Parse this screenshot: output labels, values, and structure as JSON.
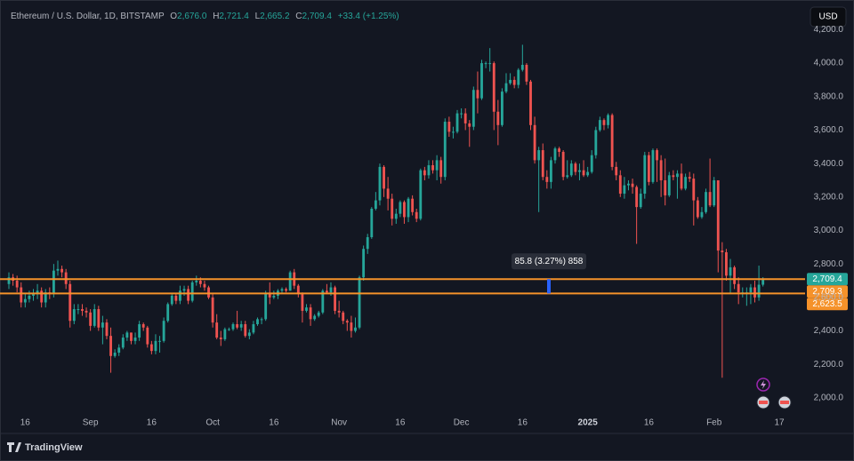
{
  "chart_data": {
    "type": "candlestick",
    "header": {
      "symbol": "Ethereum / U.S. Dollar, 1D, BITSTAMP",
      "o_key": "O",
      "o": "2,676.0",
      "h_key": "H",
      "h": "2,721.4",
      "l_key": "L",
      "l": "2,665.2",
      "c_key": "C",
      "c": "2,709.4",
      "change": "+33.4 (+1.25%)"
    },
    "currency": "USD",
    "brand": "TradingView",
    "up_color": "#26a69a",
    "down_color": "#ef5350",
    "grid": false,
    "ylim": [
      1925,
      4335
    ],
    "yticks": [
      {
        "value": 2000,
        "label": "2,000.0"
      },
      {
        "value": 2200,
        "label": "2,200.0"
      },
      {
        "value": 2400,
        "label": "2,400.0"
      },
      {
        "value": 2600,
        "label": "2,600.0"
      },
      {
        "value": 2800,
        "label": "2,800.0"
      },
      {
        "value": 3000,
        "label": "3,000.0"
      },
      {
        "value": 3200,
        "label": "3,200.0"
      },
      {
        "value": 3400,
        "label": "3,400.0"
      },
      {
        "value": 3600,
        "label": "3,600.0"
      },
      {
        "value": 3800,
        "label": "3,800.0"
      },
      {
        "value": 4000,
        "label": "4,000.0"
      },
      {
        "value": 4200,
        "label": "4,200.0"
      }
    ],
    "categories": [
      null,
      null,
      null,
      null,
      "16",
      null,
      null,
      null,
      null,
      null,
      null,
      null,
      null,
      null,
      null,
      null,
      null,
      null,
      null,
      null,
      "Sep",
      null,
      null,
      null,
      null,
      null,
      null,
      null,
      null,
      null,
      null,
      null,
      null,
      null,
      null,
      "16",
      null,
      null,
      null,
      null,
      null,
      null,
      null,
      null,
      null,
      null,
      null,
      null,
      null,
      null,
      "Oct",
      null,
      null,
      null,
      null,
      null,
      null,
      null,
      null,
      null,
      null,
      null,
      null,
      null,
      null,
      "16",
      null,
      null,
      null,
      null,
      null,
      null,
      null,
      null,
      null,
      null,
      null,
      null,
      null,
      null,
      null,
      "Nov",
      null,
      null,
      null,
      null,
      null,
      null,
      null,
      null,
      null,
      null,
      null,
      null,
      null,
      null,
      "16",
      null,
      null,
      null,
      null,
      null,
      null,
      null,
      null,
      null,
      null,
      null,
      null,
      null,
      null,
      "Dec",
      null,
      null,
      null,
      null,
      null,
      null,
      null,
      null,
      null,
      null,
      null,
      null,
      null,
      null,
      "16",
      null,
      null,
      null,
      null,
      null,
      null,
      null,
      null,
      null,
      null,
      null,
      null,
      null,
      null,
      null,
      "2025",
      null,
      null,
      null,
      null,
      null,
      null,
      null,
      null,
      null,
      null,
      null,
      null,
      null,
      null,
      "16",
      null,
      null,
      null,
      null,
      null,
      null,
      null,
      null,
      null,
      null,
      null,
      null,
      null,
      null,
      null,
      "Feb",
      null,
      null,
      null,
      null,
      null,
      null,
      null,
      null,
      null,
      null,
      null,
      null,
      null,
      null,
      null,
      "17"
    ],
    "open": [
      2680,
      2720,
      2700,
      2660,
      2570,
      2590,
      2610,
      2620,
      2640,
      2570,
      2630,
      2620,
      2760,
      2770,
      2750,
      2680,
      2460,
      2530,
      2530,
      2520,
      2510,
      2430,
      2530,
      2420,
      2450,
      2370,
      2250,
      2270,
      2300,
      2360,
      2390,
      2340,
      2360,
      2440,
      2420,
      2320,
      2280,
      2340,
      2340,
      2460,
      2560,
      2610,
      2580,
      2640,
      2650,
      2580,
      2690,
      2700,
      2680,
      2660,
      2600,
      2450,
      2360,
      2350,
      2410,
      2410,
      2440,
      2420,
      2440,
      2370,
      2390,
      2440,
      2470,
      2470,
      2620,
      2600,
      2610,
      2640,
      2650,
      2640,
      2750,
      2670,
      2620,
      2520,
      2540,
      2470,
      2490,
      2510,
      2640,
      2630,
      2660,
      2520,
      2510,
      2460,
      2450,
      2400,
      2420,
      2720,
      2890,
      2960,
      3130,
      3180,
      3380,
      3250,
      3190,
      3070,
      3100,
      3170,
      3080,
      3190,
      3110,
      3070,
      3360,
      3330,
      3390,
      3360,
      3420,
      3320,
      3650,
      3590,
      3590,
      3700,
      3700,
      3640,
      3620,
      3840,
      3790,
      4000,
      4000,
      4000,
      3710,
      3630,
      3830,
      3880,
      3900,
      3870,
      3960,
      3990,
      3890,
      3630,
      3420,
      3480,
      3320,
      3290,
      3420,
      3490,
      3470,
      3320,
      3330,
      3400,
      3350,
      3360,
      3330,
      3350,
      3450,
      3600,
      3660,
      3630,
      3690,
      3380,
      3330,
      3220,
      3270,
      3280,
      3260,
      3140,
      3220,
      3450,
      3290,
      3480,
      3420,
      3300,
      3210,
      3330,
      3320,
      3340,
      3250,
      3320,
      3310,
      3180,
      3080,
      3110,
      3230,
      3150,
      3300,
      2880,
      2870,
      2730,
      2780,
      2680,
      2630,
      2630,
      2630,
      2660,
      2600,
      2676,
      null,
      null,
      null,
      null
    ],
    "high": [
      2750,
      2740,
      2730,
      2690,
      2620,
      2640,
      2650,
      2680,
      2660,
      2650,
      2660,
      2800,
      2820,
      2790,
      2770,
      2700,
      2560,
      2560,
      2560,
      2540,
      2530,
      2560,
      2550,
      2490,
      2470,
      2420,
      2290,
      2320,
      2380,
      2400,
      2390,
      2390,
      2460,
      2450,
      2430,
      2340,
      2380,
      2370,
      2480,
      2570,
      2620,
      2620,
      2670,
      2670,
      2670,
      2700,
      2730,
      2720,
      2700,
      2670,
      2620,
      2500,
      2400,
      2420,
      2420,
      2450,
      2520,
      2460,
      2460,
      2410,
      2460,
      2480,
      2480,
      2640,
      2690,
      2640,
      2650,
      2660,
      2660,
      2760,
      2770,
      2680,
      2630,
      2560,
      2560,
      2500,
      2520,
      2650,
      2680,
      2690,
      2670,
      2580,
      2520,
      2470,
      2490,
      2480,
      2730,
      2910,
      2980,
      3140,
      3230,
      3400,
      3390,
      3320,
      3220,
      3130,
      3180,
      3180,
      3200,
      3210,
      3130,
      3370,
      3380,
      3420,
      3420,
      3450,
      3440,
      3670,
      3680,
      3620,
      3720,
      3730,
      3730,
      3660,
      3860,
      3950,
      4020,
      4010,
      4090,
      4010,
      3780,
      3850,
      3940,
      3940,
      3920,
      3970,
      4110,
      4000,
      3900,
      3680,
      3500,
      3520,
      3360,
      3440,
      3500,
      3500,
      3480,
      3420,
      3420,
      3410,
      3400,
      3420,
      3380,
      3480,
      3620,
      3680,
      3670,
      3700,
      3700,
      3410,
      3360,
      3320,
      3300,
      3310,
      3270,
      3250,
      3470,
      3470,
      3490,
      3490,
      3450,
      3430,
      3350,
      3360,
      3360,
      3400,
      3340,
      3350,
      3340,
      3200,
      3140,
      3250,
      3430,
      3320,
      3300,
      2930,
      2890,
      2830,
      2790,
      2720,
      2660,
      2660,
      2680,
      2700,
      2790,
      2721.4,
      null,
      null,
      null,
      null
    ],
    "low": [
      2650,
      2670,
      2630,
      2540,
      2540,
      2570,
      2580,
      2590,
      2540,
      2540,
      2590,
      2600,
      2730,
      2720,
      2650,
      2420,
      2440,
      2500,
      2490,
      2480,
      2400,
      2420,
      2400,
      2320,
      2350,
      2150,
      2240,
      2250,
      2290,
      2340,
      2320,
      2320,
      2340,
      2400,
      2300,
      2260,
      2260,
      2270,
      2330,
      2450,
      2550,
      2560,
      2560,
      2610,
      2560,
      2570,
      2670,
      2660,
      2640,
      2590,
      2420,
      2350,
      2310,
      2340,
      2400,
      2400,
      2410,
      2400,
      2360,
      2350,
      2380,
      2430,
      2440,
      2460,
      2560,
      2590,
      2590,
      2620,
      2630,
      2640,
      2650,
      2600,
      2450,
      2510,
      2430,
      2460,
      2480,
      2500,
      2620,
      2610,
      2500,
      2480,
      2440,
      2400,
      2360,
      2390,
      2410,
      2700,
      2860,
      2950,
      3120,
      3150,
      3200,
      3120,
      3030,
      3040,
      3080,
      3040,
      3050,
      3090,
      3050,
      3060,
      3300,
      3310,
      3340,
      3300,
      3280,
      3300,
      3560,
      3550,
      3580,
      3670,
      3600,
      3500,
      3600,
      3700,
      3780,
      3970,
      3950,
      3600,
      3510,
      3620,
      3820,
      3870,
      3850,
      3850,
      3950,
      3870,
      3600,
      3400,
      3110,
      3300,
      3250,
      3250,
      3400,
      3440,
      3300,
      3310,
      3320,
      3330,
      3300,
      3320,
      3320,
      3340,
      3430,
      3590,
      3600,
      3610,
      3360,
      3300,
      3200,
      3190,
      3240,
      3220,
      2920,
      3130,
      3190,
      3270,
      3280,
      3290,
      3200,
      3150,
      3200,
      3300,
      3190,
      3240,
      3240,
      3290,
      3030,
      3070,
      3070,
      3100,
      3140,
      3140,
      2750,
      2120,
      2700,
      2620,
      2650,
      2560,
      2600,
      2550,
      2560,
      2570,
      2580,
      2665.2,
      null,
      null,
      null,
      null
    ],
    "close": [
      2720,
      2700,
      2660,
      2570,
      2590,
      2610,
      2620,
      2640,
      2570,
      2630,
      2620,
      2760,
      2770,
      2750,
      2680,
      2460,
      2530,
      2530,
      2520,
      2510,
      2430,
      2530,
      2420,
      2450,
      2370,
      2250,
      2270,
      2300,
      2360,
      2390,
      2340,
      2360,
      2440,
      2420,
      2320,
      2280,
      2340,
      2340,
      2460,
      2560,
      2610,
      2580,
      2640,
      2650,
      2580,
      2690,
      2700,
      2680,
      2660,
      2600,
      2450,
      2360,
      2350,
      2410,
      2410,
      2440,
      2420,
      2440,
      2370,
      2390,
      2440,
      2470,
      2470,
      2620,
      2600,
      2610,
      2640,
      2650,
      2640,
      2750,
      2670,
      2620,
      2520,
      2540,
      2470,
      2490,
      2510,
      2640,
      2630,
      2660,
      2520,
      2510,
      2460,
      2450,
      2400,
      2420,
      2720,
      2890,
      2960,
      3130,
      3180,
      3380,
      3250,
      3190,
      3070,
      3100,
      3170,
      3080,
      3190,
      3110,
      3070,
      3360,
      3330,
      3390,
      3360,
      3420,
      3320,
      3650,
      3590,
      3590,
      3700,
      3700,
      3640,
      3620,
      3840,
      3790,
      4000,
      4000,
      4000,
      3710,
      3630,
      3830,
      3880,
      3900,
      3870,
      3960,
      3990,
      3890,
      3630,
      3420,
      3480,
      3320,
      3290,
      3420,
      3490,
      3470,
      3320,
      3330,
      3400,
      3350,
      3360,
      3330,
      3350,
      3450,
      3600,
      3660,
      3630,
      3690,
      3380,
      3330,
      3220,
      3270,
      3280,
      3260,
      3140,
      3220,
      3450,
      3290,
      3480,
      3420,
      3300,
      3210,
      3330,
      3320,
      3340,
      3250,
      3320,
      3310,
      3180,
      3080,
      3110,
      3230,
      3150,
      3300,
      2880,
      2870,
      2730,
      2780,
      2680,
      2630,
      2630,
      2630,
      2660,
      2600,
      2676,
      2709.4,
      null,
      null,
      null,
      null
    ],
    "last_price_label": "2,709.4",
    "hlines": [
      {
        "value": 2709.3,
        "label": "2,709.3",
        "color": "#f5922a"
      },
      {
        "value": 2623.5,
        "label": "2,623.5",
        "color": "#f5922a"
      }
    ],
    "measure": {
      "text": "85.8 (3.27%) 858",
      "color": "#2962ff"
    }
  }
}
